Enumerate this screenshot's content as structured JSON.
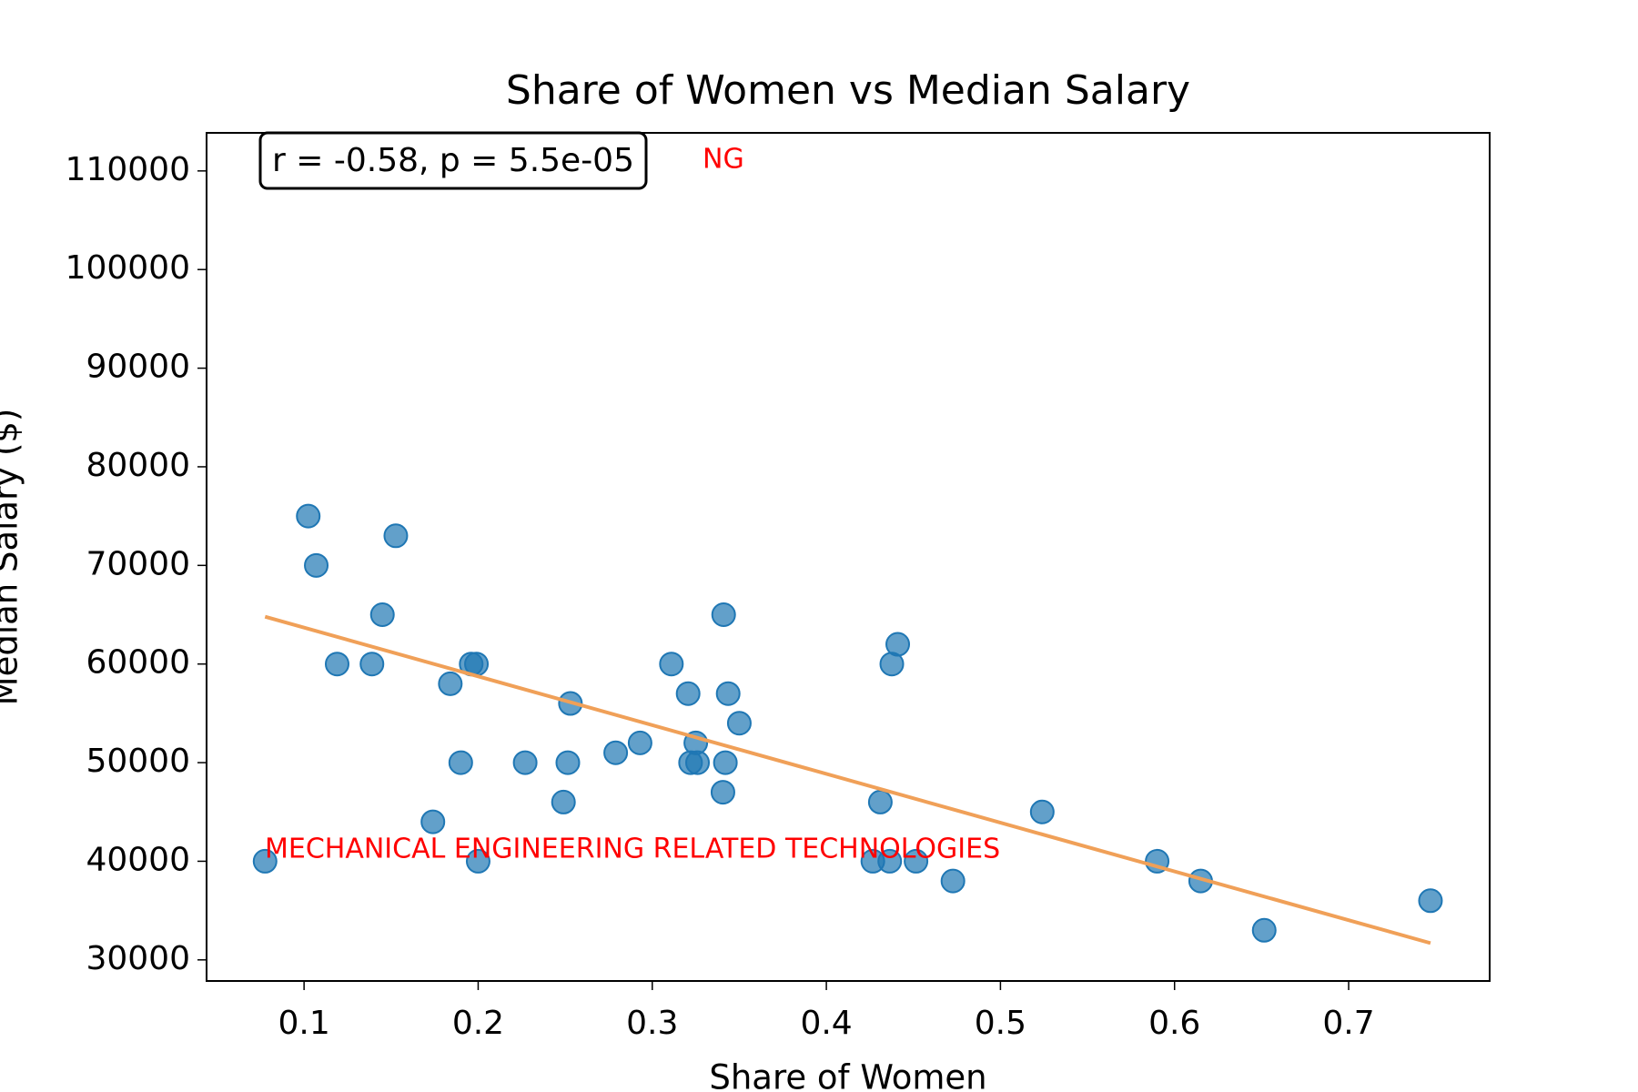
{
  "chart_data": {
    "type": "scatter",
    "title": "Share of Women vs Median Salary",
    "xlabel": "Share of Women",
    "ylabel": "Median Salary ($)",
    "x": [
      0.0776,
      0.1024,
      0.107,
      0.1527,
      0.145,
      0.119,
      0.139,
      0.184,
      0.196,
      0.199,
      0.19,
      0.174,
      0.2,
      0.227,
      0.249,
      0.2515,
      0.253,
      0.279,
      0.293,
      0.311,
      0.3206,
      0.322,
      0.325,
      0.326,
      0.341,
      0.3436,
      0.342,
      0.3406,
      0.35,
      0.431,
      0.4267,
      0.4364,
      0.4376,
      0.441,
      0.4515,
      0.4727,
      0.524,
      0.59,
      0.615,
      0.6515,
      0.747
    ],
    "values": [
      40000,
      75000,
      70000,
      73000,
      65000,
      60000,
      60000,
      58000,
      60000,
      60000,
      50000,
      44000,
      40000,
      50000,
      46000,
      50000,
      56000,
      51000,
      52000,
      60000,
      57000,
      50000,
      52000,
      50000,
      65000,
      57000,
      50000,
      47000,
      54000,
      46000,
      40000,
      40000,
      60000,
      62000,
      40000,
      38000,
      45000,
      40000,
      38000,
      33000,
      36000
    ],
    "color": "#1f77b4",
    "trendline": {
      "x": [
        0.0776,
        0.747
      ],
      "values": [
        64800,
        31700
      ],
      "color": "#f0a058"
    },
    "annotations": [
      "MECHANICAL ENGINEERING RELATED TECHNOLOGIES",
      "NG"
    ],
    "stat_text": "r = -0.58, p = 5.5e-05",
    "xlim": [
      0.044,
      0.781
    ],
    "ylim": [
      27860,
      113860
    ],
    "xticks": [
      0.1,
      0.2,
      0.3,
      0.4,
      0.5,
      0.6,
      0.7
    ],
    "yticks": [
      30000,
      40000,
      50000,
      60000,
      70000,
      80000,
      90000,
      100000,
      110000
    ],
    "grid": false
  }
}
